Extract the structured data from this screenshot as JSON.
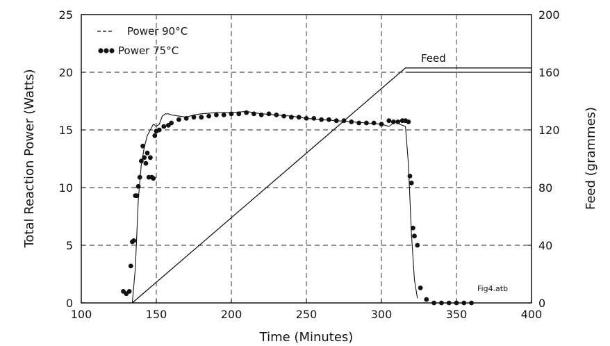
{
  "chart_data": {
    "type": "line",
    "xlabel": "Time (Minutes)",
    "ylabel_left": "Total Reaction Power (Watts)",
    "ylabel_right": "Feed (grammes)",
    "xlim": [
      100,
      400
    ],
    "ylim_left": [
      0,
      25
    ],
    "ylim_right": [
      0,
      200
    ],
    "x_ticks": [
      "100",
      "150",
      "200",
      "250",
      "300",
      "350",
      "400"
    ],
    "y_left_ticks": [
      "0",
      "5",
      "10",
      "15",
      "20",
      "25"
    ],
    "y_right_ticks": [
      "0",
      "40",
      "80",
      "120",
      "160",
      "200"
    ],
    "grid": "dashed",
    "legend": {
      "placement": "top-left",
      "entries": [
        {
          "marker": "----",
          "label": "Power 90°C"
        },
        {
          "marker": "●●●",
          "label": "Power 75°C"
        }
      ]
    },
    "annotations": {
      "feed_label": "Feed",
      "file_label": "Fig4.atb"
    },
    "series": [
      {
        "name": "Power 90°C",
        "axis": "left",
        "style": "thin-line",
        "x": [
          134,
          136,
          138,
          140,
          142,
          144,
          146,
          148,
          150,
          152,
          154,
          156,
          158,
          160,
          165,
          170,
          175,
          180,
          190,
          200,
          210,
          220,
          230,
          240,
          250,
          260,
          270,
          280,
          290,
          300,
          305,
          308,
          310,
          312,
          314,
          316,
          318,
          320,
          322,
          324
        ],
        "y": [
          0,
          3,
          9,
          12,
          13.5,
          14.5,
          15,
          15.5,
          15.3,
          15.5,
          16.2,
          16.4,
          16.4,
          16.3,
          16.2,
          16.1,
          16.3,
          16.4,
          16.5,
          16.5,
          16.6,
          16.4,
          16.3,
          16.2,
          16.0,
          15.9,
          15.8,
          15.7,
          15.6,
          15.5,
          15.3,
          15.6,
          15.8,
          15.5,
          15.4,
          15.3,
          12,
          6,
          2,
          0.4
        ]
      },
      {
        "name": "Power 75°C",
        "axis": "left",
        "style": "dots",
        "x": [
          128,
          130,
          132,
          133,
          134,
          135,
          136,
          137,
          138,
          139,
          140,
          141,
          142,
          143,
          144,
          145,
          146,
          147,
          148,
          149,
          150,
          152,
          155,
          158,
          160,
          165,
          170,
          175,
          180,
          185,
          190,
          195,
          200,
          205,
          210,
          215,
          220,
          225,
          230,
          235,
          240,
          245,
          250,
          255,
          260,
          265,
          270,
          275,
          280,
          285,
          290,
          295,
          300,
          305,
          308,
          311,
          314,
          316,
          318,
          319,
          320,
          321,
          322,
          324,
          326,
          330,
          335,
          340,
          345,
          350,
          355,
          360
        ],
        "y": [
          1.0,
          0.8,
          1.0,
          3.2,
          5.3,
          5.4,
          9.3,
          9.3,
          10.1,
          10.9,
          12.3,
          13.6,
          12.6,
          12.1,
          13.0,
          10.9,
          12.6,
          10.9,
          10.8,
          14.5,
          14.9,
          15.0,
          15.3,
          15.4,
          15.6,
          15.9,
          16.0,
          16.1,
          16.1,
          16.2,
          16.3,
          16.3,
          16.4,
          16.4,
          16.5,
          16.4,
          16.3,
          16.4,
          16.3,
          16.2,
          16.1,
          16.1,
          16.0,
          16.0,
          15.9,
          15.9,
          15.8,
          15.8,
          15.7,
          15.6,
          15.6,
          15.6,
          15.5,
          15.8,
          15.7,
          15.7,
          15.8,
          15.8,
          15.7,
          11.0,
          10.4,
          6.5,
          5.8,
          5.0,
          1.3,
          0.3,
          0.0,
          0.0,
          0.0,
          0.0,
          0.0,
          0.0
        ]
      },
      {
        "name": "Feed",
        "axis": "right",
        "style": "line",
        "x": [
          134,
          316,
          400
        ],
        "y": [
          0,
          163,
          163
        ]
      },
      {
        "name": "Feed",
        "axis": "right",
        "style": "line",
        "x": [
          316,
          400
        ],
        "y": [
          160,
          160
        ]
      }
    ]
  }
}
